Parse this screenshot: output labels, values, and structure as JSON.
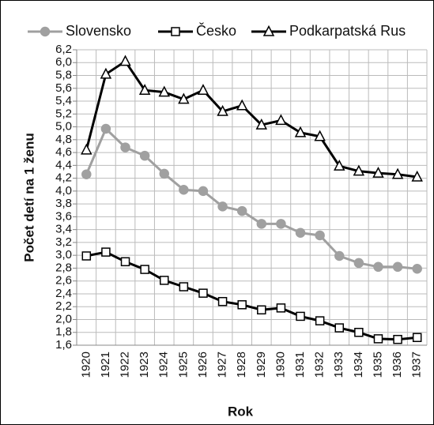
{
  "chart_data": {
    "type": "line",
    "xlabel": "Rok",
    "ylabel": "Počet detí na 1 ženu",
    "categories": [
      "1920",
      "1921",
      "1922",
      "1923",
      "1924",
      "1925",
      "1926",
      "1927",
      "1928",
      "1929",
      "1930",
      "1931",
      "1932",
      "1933",
      "1934",
      "1935",
      "1936",
      "1937"
    ],
    "series": [
      {
        "name": "Slovensko",
        "color": "#a0a0a0",
        "marker": "circle",
        "values": [
          4.26,
          4.97,
          4.68,
          4.55,
          4.27,
          4.02,
          4.0,
          3.76,
          3.69,
          3.49,
          3.49,
          3.35,
          3.31,
          2.99,
          2.88,
          2.82,
          2.82,
          2.79
        ]
      },
      {
        "name": "Česko",
        "color": "#000000",
        "marker": "square",
        "values": [
          2.99,
          3.05,
          2.9,
          2.78,
          2.61,
          2.51,
          2.41,
          2.28,
          2.23,
          2.15,
          2.18,
          2.05,
          1.98,
          1.87,
          1.8,
          1.7,
          1.69,
          1.72
        ]
      },
      {
        "name": "Podkarpatská Rus",
        "color": "#000000",
        "marker": "triangle",
        "values": [
          4.64,
          5.82,
          6.02,
          5.57,
          5.54,
          5.43,
          5.57,
          5.24,
          5.33,
          5.03,
          5.1,
          4.91,
          4.85,
          4.39,
          4.31,
          4.28,
          4.26,
          4.22
        ]
      }
    ],
    "ylim": [
      1.6,
      6.2
    ],
    "yticks": [
      {
        "value": 1.6,
        "label": "1,6"
      },
      {
        "value": 1.8,
        "label": "1,8"
      },
      {
        "value": 2.0,
        "label": "2,0"
      },
      {
        "value": 2.2,
        "label": "2,2"
      },
      {
        "value": 2.4,
        "label": "2,4"
      },
      {
        "value": 2.6,
        "label": "2,6"
      },
      {
        "value": 2.8,
        "label": "2,8"
      },
      {
        "value": 3.0,
        "label": "3,0"
      },
      {
        "value": 3.2,
        "label": "3,2"
      },
      {
        "value": 3.4,
        "label": "3,4"
      },
      {
        "value": 3.6,
        "label": "3,6"
      },
      {
        "value": 3.8,
        "label": "3,8"
      },
      {
        "value": 4.0,
        "label": "4,0"
      },
      {
        "value": 4.2,
        "label": "4,2"
      },
      {
        "value": 4.4,
        "label": "4,4"
      },
      {
        "value": 4.6,
        "label": "4,6"
      },
      {
        "value": 4.8,
        "label": "4,8"
      },
      {
        "value": 5.0,
        "label": "5,0"
      },
      {
        "value": 5.2,
        "label": "5,2"
      },
      {
        "value": 5.4,
        "label": "5,4"
      },
      {
        "value": 5.6,
        "label": "5,6"
      },
      {
        "value": 5.8,
        "label": "5,8"
      },
      {
        "value": 6.0,
        "label": "6,0"
      },
      {
        "value": 6.2,
        "label": "6,2"
      }
    ],
    "grid": true
  }
}
